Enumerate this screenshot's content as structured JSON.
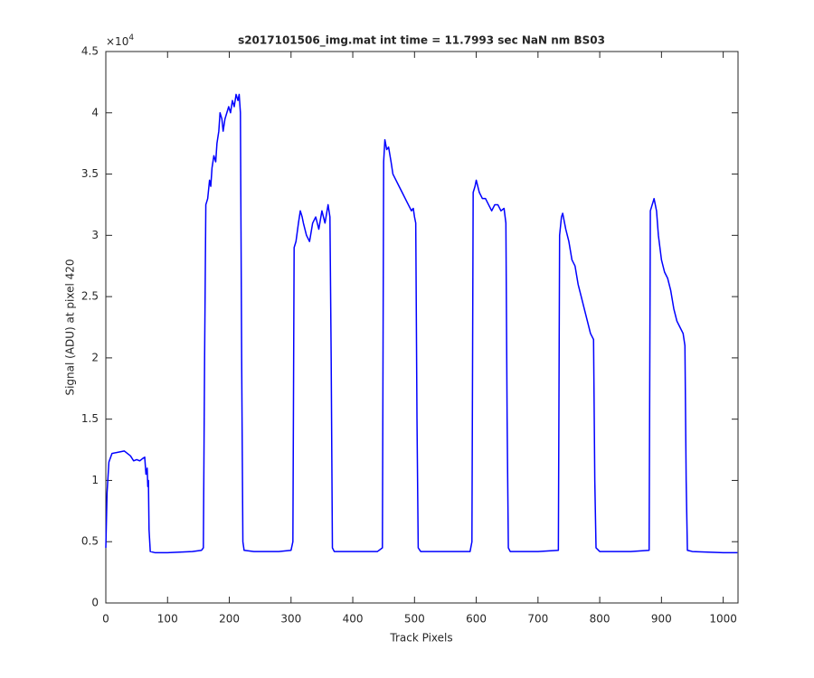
{
  "chart_data": {
    "type": "line",
    "title": "s2017101506_img.mat int time = 11.7993 sec  NaN nm BS03",
    "x_label": "Track Pixels",
    "y_label": "Signal (ADU) at pixel 420",
    "y_multiplier": {
      "base": "×10",
      "exponent": "4"
    },
    "xlim": [
      0,
      1024
    ],
    "ylim": [
      0,
      4.5
    ],
    "xticks": [
      0,
      100,
      200,
      300,
      400,
      500,
      600,
      700,
      800,
      900,
      1000
    ],
    "yticks": [
      0,
      0.5,
      1,
      1.5,
      2,
      2.5,
      3,
      3.5,
      4,
      4.5
    ],
    "grid": false,
    "series": [
      {
        "color": "#0000ff",
        "x": [
          0,
          2,
          5,
          10,
          20,
          30,
          40,
          45,
          50,
          55,
          60,
          63,
          65,
          67,
          68,
          69,
          70,
          72,
          80,
          100,
          120,
          140,
          155,
          158,
          160,
          162,
          165,
          168,
          170,
          172,
          175,
          178,
          180,
          183,
          185,
          188,
          190,
          193,
          196,
          199,
          202,
          205,
          208,
          211,
          214,
          216,
          218,
          220,
          222,
          224,
          240,
          280,
          300,
          303,
          305,
          308,
          312,
          315,
          318,
          320,
          325,
          330,
          335,
          340,
          345,
          350,
          355,
          360,
          363,
          365,
          367,
          370,
          400,
          440,
          448,
          450,
          452,
          455,
          458,
          462,
          465,
          470,
          475,
          480,
          485,
          490,
          495,
          498,
          500,
          502,
          504,
          506,
          510,
          550,
          590,
          593,
          595,
          598,
          600,
          605,
          610,
          615,
          620,
          625,
          630,
          635,
          640,
          645,
          648,
          650,
          652,
          655,
          700,
          733,
          735,
          738,
          740,
          745,
          750,
          755,
          760,
          765,
          770,
          775,
          780,
          785,
          790,
          792,
          794,
          800,
          850,
          880,
          882,
          885,
          888,
          892,
          895,
          900,
          905,
          910,
          915,
          920,
          925,
          930,
          935,
          938,
          940,
          942,
          950,
          1000,
          1023
        ],
        "values": [
          0.45,
          0.9,
          1.15,
          1.22,
          1.23,
          1.24,
          1.2,
          1.16,
          1.17,
          1.16,
          1.18,
          1.19,
          1.05,
          1.1,
          0.95,
          1.0,
          0.6,
          0.42,
          0.41,
          0.41,
          0.415,
          0.42,
          0.43,
          0.45,
          2.0,
          3.25,
          3.3,
          3.45,
          3.4,
          3.55,
          3.65,
          3.6,
          3.75,
          3.85,
          4.0,
          3.95,
          3.85,
          3.95,
          4.0,
          4.05,
          4.0,
          4.1,
          4.05,
          4.15,
          4.1,
          4.15,
          4.0,
          2.0,
          0.5,
          0.43,
          0.42,
          0.42,
          0.43,
          0.5,
          2.9,
          2.95,
          3.1,
          3.2,
          3.15,
          3.1,
          3.0,
          2.95,
          3.1,
          3.15,
          3.05,
          3.2,
          3.1,
          3.25,
          3.15,
          2.0,
          0.45,
          0.42,
          0.42,
          0.42,
          0.45,
          3.6,
          3.78,
          3.7,
          3.72,
          3.6,
          3.5,
          3.45,
          3.4,
          3.35,
          3.3,
          3.25,
          3.2,
          3.22,
          3.15,
          3.1,
          1.5,
          0.45,
          0.42,
          0.42,
          0.42,
          0.5,
          3.35,
          3.4,
          3.45,
          3.35,
          3.3,
          3.3,
          3.25,
          3.2,
          3.25,
          3.25,
          3.2,
          3.22,
          3.1,
          1.5,
          0.45,
          0.42,
          0.42,
          0.43,
          3.0,
          3.15,
          3.18,
          3.05,
          2.95,
          2.8,
          2.75,
          2.6,
          2.5,
          2.4,
          2.3,
          2.2,
          2.15,
          1.0,
          0.45,
          0.42,
          0.42,
          0.43,
          3.2,
          3.25,
          3.3,
          3.2,
          3.0,
          2.8,
          2.7,
          2.65,
          2.55,
          2.4,
          2.3,
          2.25,
          2.2,
          2.1,
          1.0,
          0.43,
          0.42,
          0.41,
          0.41
        ]
      }
    ]
  }
}
